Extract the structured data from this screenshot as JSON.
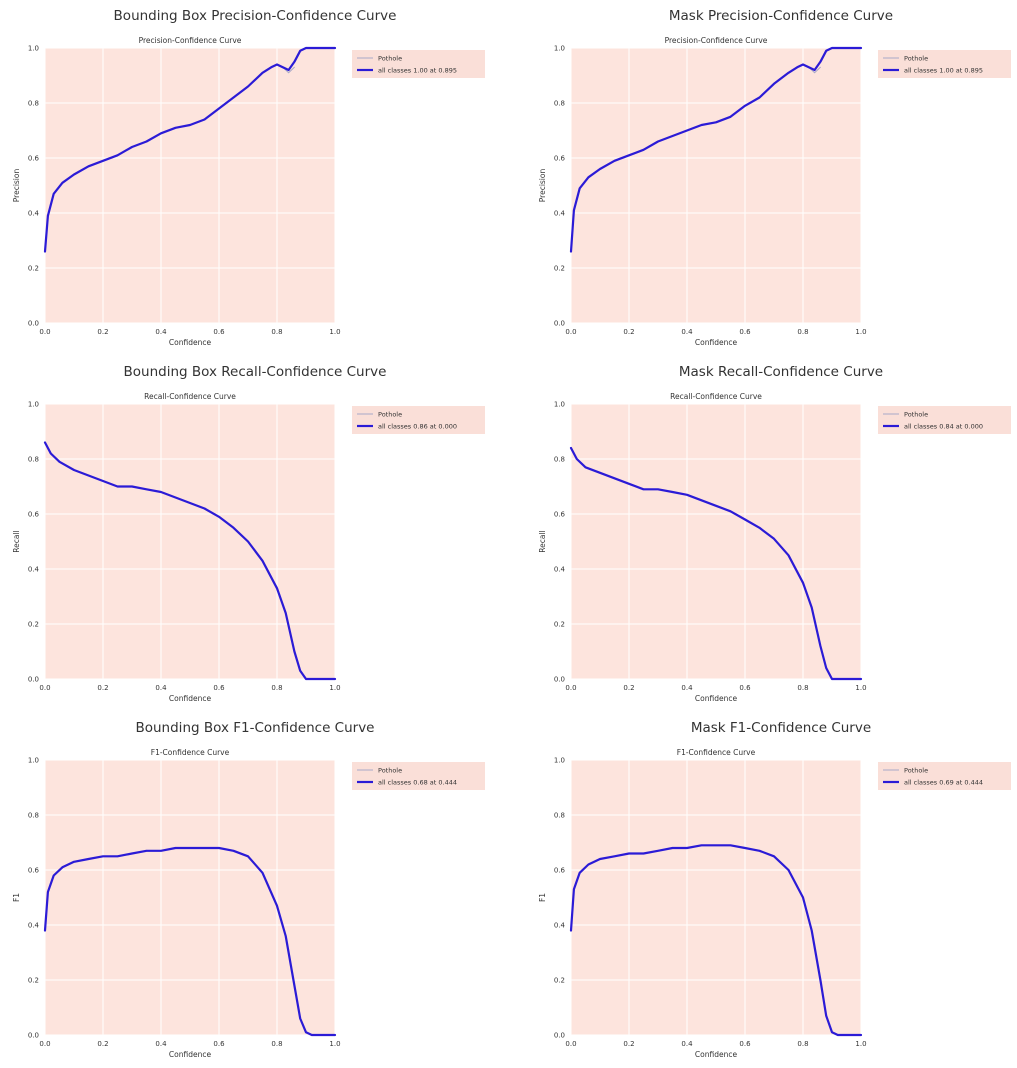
{
  "colors": {
    "plot_background": "#fde4dd",
    "grid": "#ffffff",
    "curve_all_classes": "#2b1bd6",
    "curve_pothole": "#a8a8c8",
    "legend_background": "#fadfd8",
    "text": "#333333"
  },
  "chart_data": [
    {
      "type": "line",
      "heading": "Bounding Box Precision-Confidence Curve",
      "title": "Precision-Confidence Curve",
      "xlabel": "Confidence",
      "ylabel": "Precision",
      "xlim": [
        0,
        1
      ],
      "ylim": [
        0,
        1
      ],
      "xticks": [
        "0.0",
        "0.2",
        "0.4",
        "0.6",
        "0.8",
        "1.0"
      ],
      "yticks": [
        "0.0",
        "0.2",
        "0.4",
        "0.6",
        "0.8",
        "1.0"
      ],
      "grid": true,
      "legend_position": "outside-right-top",
      "series": [
        {
          "name": "Pothole",
          "x": [
            0.82,
            0.84,
            0.86
          ],
          "y": [
            0.93,
            0.91,
            0.93
          ]
        },
        {
          "name": "all classes 1.00 at 0.895",
          "x": [
            0,
            0.01,
            0.03,
            0.06,
            0.1,
            0.15,
            0.2,
            0.25,
            0.3,
            0.35,
            0.4,
            0.45,
            0.5,
            0.55,
            0.6,
            0.65,
            0.7,
            0.75,
            0.78,
            0.8,
            0.82,
            0.84,
            0.86,
            0.88,
            0.9,
            1.0
          ],
          "y": [
            0.26,
            0.39,
            0.47,
            0.51,
            0.54,
            0.57,
            0.59,
            0.61,
            0.64,
            0.66,
            0.69,
            0.71,
            0.72,
            0.74,
            0.78,
            0.82,
            0.86,
            0.91,
            0.93,
            0.94,
            0.93,
            0.92,
            0.95,
            0.99,
            1.0,
            1.0
          ]
        }
      ]
    },
    {
      "type": "line",
      "heading": "Mask Precision-Confidence Curve",
      "title": "Precision-Confidence Curve",
      "xlabel": "Confidence",
      "ylabel": "Precision",
      "xlim": [
        0,
        1
      ],
      "ylim": [
        0,
        1
      ],
      "xticks": [
        "0.0",
        "0.2",
        "0.4",
        "0.6",
        "0.8",
        "1.0"
      ],
      "yticks": [
        "0.0",
        "0.2",
        "0.4",
        "0.6",
        "0.8",
        "1.0"
      ],
      "grid": true,
      "legend_position": "outside-right-top",
      "series": [
        {
          "name": "Pothole",
          "x": [
            0.82,
            0.84,
            0.86
          ],
          "y": [
            0.93,
            0.91,
            0.93
          ]
        },
        {
          "name": "all classes 1.00 at 0.895",
          "x": [
            0,
            0.01,
            0.03,
            0.06,
            0.1,
            0.15,
            0.2,
            0.25,
            0.3,
            0.35,
            0.4,
            0.45,
            0.5,
            0.55,
            0.6,
            0.65,
            0.7,
            0.75,
            0.78,
            0.8,
            0.82,
            0.84,
            0.86,
            0.88,
            0.9,
            1.0
          ],
          "y": [
            0.26,
            0.41,
            0.49,
            0.53,
            0.56,
            0.59,
            0.61,
            0.63,
            0.66,
            0.68,
            0.7,
            0.72,
            0.73,
            0.75,
            0.79,
            0.82,
            0.87,
            0.91,
            0.93,
            0.94,
            0.93,
            0.92,
            0.95,
            0.99,
            1.0,
            1.0
          ]
        }
      ]
    },
    {
      "type": "line",
      "heading": "Bounding Box Recall-Confidence Curve",
      "title": "Recall-Confidence Curve",
      "xlabel": "Confidence",
      "ylabel": "Recall",
      "xlim": [
        0,
        1
      ],
      "ylim": [
        0,
        1
      ],
      "xticks": [
        "0.0",
        "0.2",
        "0.4",
        "0.6",
        "0.8",
        "1.0"
      ],
      "yticks": [
        "0.0",
        "0.2",
        "0.4",
        "0.6",
        "0.8",
        "1.0"
      ],
      "grid": true,
      "legend_position": "outside-right-top",
      "series": [
        {
          "name": "Pothole",
          "x": [],
          "y": []
        },
        {
          "name": "all classes 0.86 at 0.000",
          "x": [
            0,
            0.02,
            0.05,
            0.1,
            0.15,
            0.2,
            0.25,
            0.3,
            0.35,
            0.4,
            0.45,
            0.5,
            0.55,
            0.6,
            0.65,
            0.7,
            0.75,
            0.8,
            0.83,
            0.86,
            0.88,
            0.9,
            0.92,
            1.0
          ],
          "y": [
            0.86,
            0.82,
            0.79,
            0.76,
            0.74,
            0.72,
            0.7,
            0.7,
            0.69,
            0.68,
            0.66,
            0.64,
            0.62,
            0.59,
            0.55,
            0.5,
            0.43,
            0.33,
            0.24,
            0.1,
            0.03,
            0.0,
            0.0,
            0.0
          ]
        }
      ]
    },
    {
      "type": "line",
      "heading": "Mask Recall-Confidence Curve",
      "title": "Recall-Confidence Curve",
      "xlabel": "Confidence",
      "ylabel": "Recall",
      "xlim": [
        0,
        1
      ],
      "ylim": [
        0,
        1
      ],
      "xticks": [
        "0.0",
        "0.2",
        "0.4",
        "0.6",
        "0.8",
        "1.0"
      ],
      "yticks": [
        "0.0",
        "0.2",
        "0.4",
        "0.6",
        "0.8",
        "1.0"
      ],
      "grid": true,
      "legend_position": "outside-right-top",
      "series": [
        {
          "name": "Pothole",
          "x": [],
          "y": []
        },
        {
          "name": "all classes 0.84 at 0.000",
          "x": [
            0,
            0.02,
            0.05,
            0.1,
            0.15,
            0.2,
            0.25,
            0.3,
            0.35,
            0.4,
            0.45,
            0.5,
            0.55,
            0.6,
            0.65,
            0.7,
            0.75,
            0.8,
            0.83,
            0.86,
            0.88,
            0.9,
            0.92,
            1.0
          ],
          "y": [
            0.84,
            0.8,
            0.77,
            0.75,
            0.73,
            0.71,
            0.69,
            0.69,
            0.68,
            0.67,
            0.65,
            0.63,
            0.61,
            0.58,
            0.55,
            0.51,
            0.45,
            0.35,
            0.26,
            0.12,
            0.04,
            0.0,
            0.0,
            0.0
          ]
        }
      ]
    },
    {
      "type": "line",
      "heading": "Bounding Box F1-Confidence Curve",
      "title": "F1-Confidence Curve",
      "xlabel": "Confidence",
      "ylabel": "F1",
      "xlim": [
        0,
        1
      ],
      "ylim": [
        0,
        1
      ],
      "xticks": [
        "0.0",
        "0.2",
        "0.4",
        "0.6",
        "0.8",
        "1.0"
      ],
      "yticks": [
        "0.0",
        "0.2",
        "0.4",
        "0.6",
        "0.8",
        "1.0"
      ],
      "grid": true,
      "legend_position": "outside-right-top",
      "series": [
        {
          "name": "Pothole",
          "x": [],
          "y": []
        },
        {
          "name": "all classes 0.68 at 0.444",
          "x": [
            0,
            0.01,
            0.03,
            0.06,
            0.1,
            0.15,
            0.2,
            0.25,
            0.3,
            0.35,
            0.4,
            0.45,
            0.5,
            0.55,
            0.6,
            0.65,
            0.7,
            0.75,
            0.8,
            0.83,
            0.86,
            0.88,
            0.9,
            0.92,
            1.0
          ],
          "y": [
            0.38,
            0.52,
            0.58,
            0.61,
            0.63,
            0.64,
            0.65,
            0.65,
            0.66,
            0.67,
            0.67,
            0.68,
            0.68,
            0.68,
            0.68,
            0.67,
            0.65,
            0.59,
            0.47,
            0.36,
            0.18,
            0.06,
            0.01,
            0.0,
            0.0
          ]
        }
      ]
    },
    {
      "type": "line",
      "heading": "Mask F1-Confidence Curve",
      "title": "F1-Confidence Curve",
      "xlabel": "Confidence",
      "ylabel": "F1",
      "xlim": [
        0,
        1
      ],
      "ylim": [
        0,
        1
      ],
      "xticks": [
        "0.0",
        "0.2",
        "0.4",
        "0.6",
        "0.8",
        "1.0"
      ],
      "yticks": [
        "0.0",
        "0.2",
        "0.4",
        "0.6",
        "0.8",
        "1.0"
      ],
      "grid": true,
      "legend_position": "outside-right-top",
      "series": [
        {
          "name": "Pothole",
          "x": [],
          "y": []
        },
        {
          "name": "all classes 0.69 at 0.444",
          "x": [
            0,
            0.01,
            0.03,
            0.06,
            0.1,
            0.15,
            0.2,
            0.25,
            0.3,
            0.35,
            0.4,
            0.45,
            0.5,
            0.55,
            0.6,
            0.65,
            0.7,
            0.75,
            0.8,
            0.83,
            0.86,
            0.88,
            0.9,
            0.92,
            1.0
          ],
          "y": [
            0.38,
            0.53,
            0.59,
            0.62,
            0.64,
            0.65,
            0.66,
            0.66,
            0.67,
            0.68,
            0.68,
            0.69,
            0.69,
            0.69,
            0.68,
            0.67,
            0.65,
            0.6,
            0.5,
            0.38,
            0.2,
            0.07,
            0.01,
            0.0,
            0.0
          ]
        }
      ]
    }
  ]
}
